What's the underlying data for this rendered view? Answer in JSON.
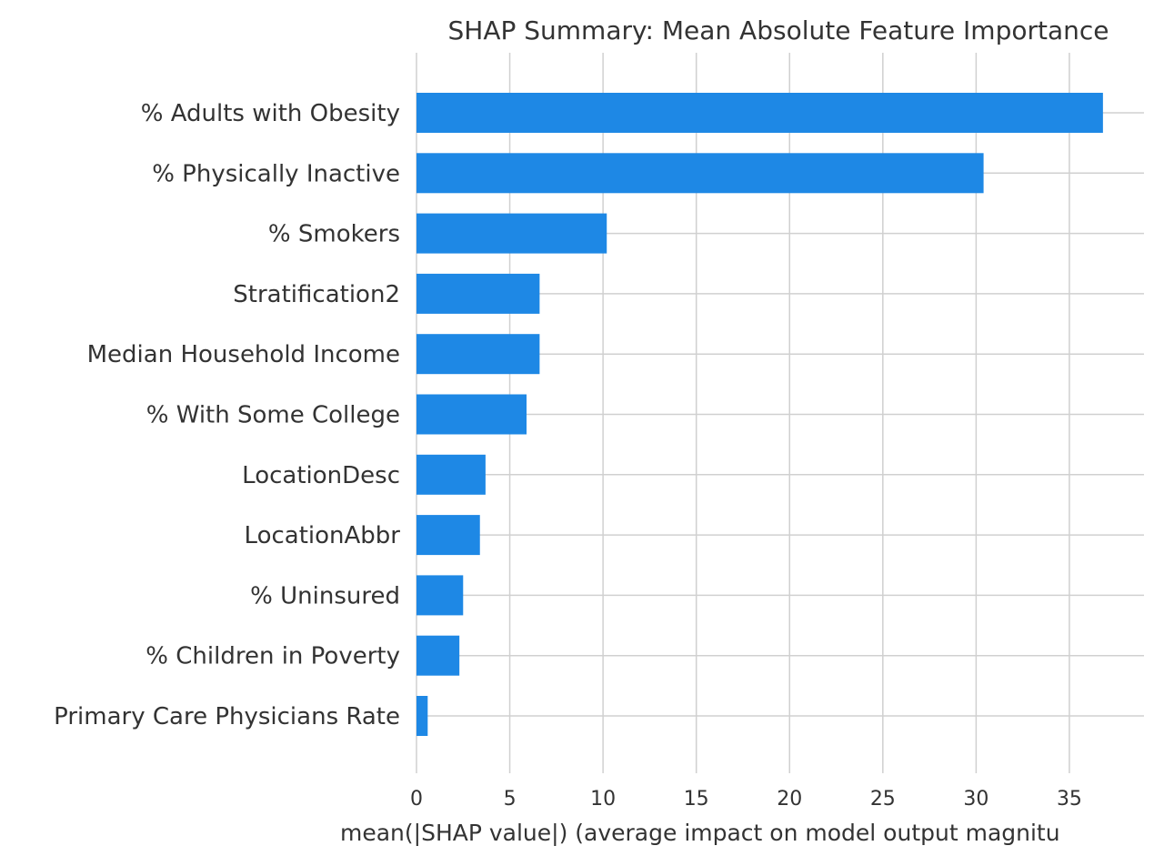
{
  "chart_data": {
    "type": "bar",
    "orientation": "horizontal",
    "title": "SHAP Summary: Mean Absolute Feature Importance",
    "xlabel": "mean(|SHAP value|) (average impact on model output magnitu",
    "ylabel": "",
    "xlim": [
      0,
      39
    ],
    "xticks": [
      0,
      5,
      10,
      15,
      20,
      25,
      30,
      35
    ],
    "grid": true,
    "bar_color": "#1e88e5",
    "grid_color": "#d0d0d0",
    "text_color": "#333333",
    "categories": [
      "% Adults with Obesity",
      "% Physically Inactive",
      "% Smokers",
      "Stratification2",
      "Median Household Income",
      "% With Some College",
      "LocationDesc",
      "LocationAbbr",
      "% Uninsured",
      "% Children in Poverty",
      "Primary Care Physicians Rate"
    ],
    "values": [
      36.8,
      30.4,
      10.2,
      6.6,
      6.6,
      5.9,
      3.7,
      3.4,
      2.5,
      2.3,
      0.6
    ]
  }
}
